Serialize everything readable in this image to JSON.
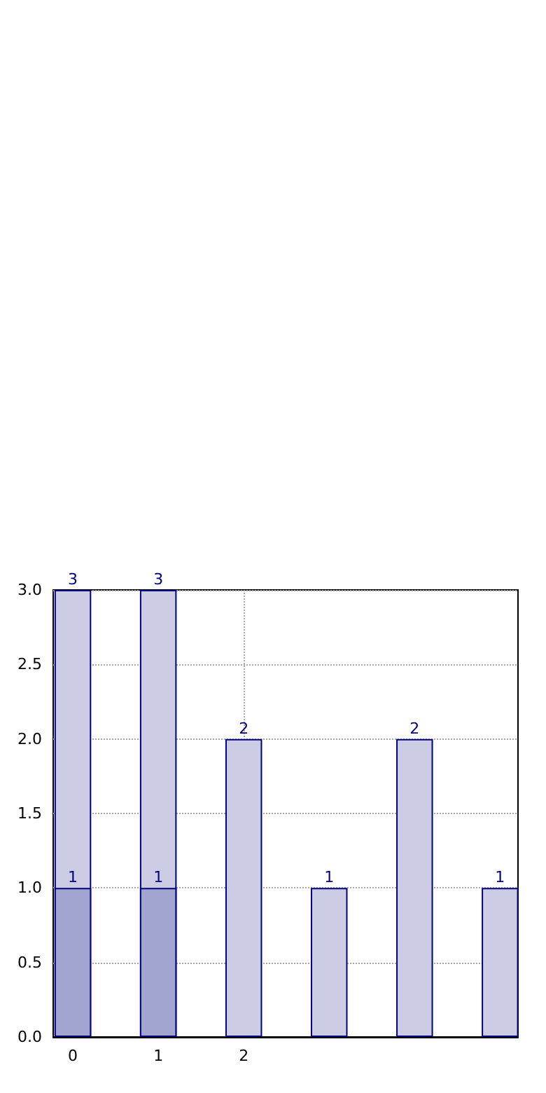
{
  "chart_data": {
    "type": "bar",
    "x": [
      0,
      1,
      2,
      3,
      4,
      5
    ],
    "series": [
      {
        "color": "#ccccE5",
        "values": [
          3,
          3,
          2,
          1,
          2,
          1
        ]
      },
      {
        "color": "#a3a5d1",
        "values": [
          1,
          1,
          null,
          null,
          null,
          null
        ]
      }
    ],
    "xlim": [
      -0.23,
      5.21
    ],
    "xticks": [
      0,
      1,
      2
    ],
    "ylim": [
      0,
      3
    ],
    "yticks": [
      {
        "value": 0,
        "label": "0.0"
      },
      0.5,
      {
        "value": 1,
        "label": "1.0"
      },
      1.5,
      {
        "value": 2,
        "label": "2.0"
      },
      2.5,
      {
        "value": 3,
        "label": "3.0"
      }
    ],
    "grid": true,
    "data_labels": true
  }
}
